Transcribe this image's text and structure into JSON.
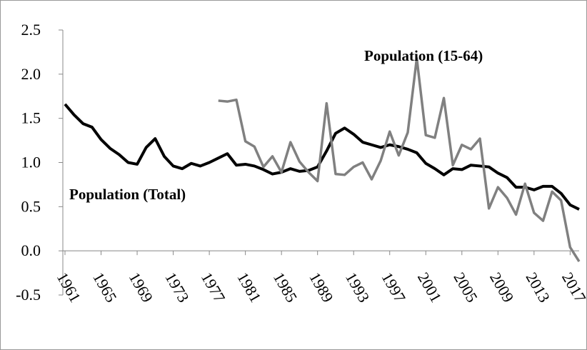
{
  "chart_data": {
    "type": "line",
    "x": [
      1961,
      1962,
      1963,
      1964,
      1965,
      1966,
      1967,
      1968,
      1969,
      1970,
      1971,
      1972,
      1973,
      1974,
      1975,
      1976,
      1977,
      1978,
      1979,
      1980,
      1981,
      1982,
      1983,
      1984,
      1985,
      1986,
      1987,
      1988,
      1989,
      1990,
      1991,
      1992,
      1993,
      1994,
      1995,
      1996,
      1997,
      1998,
      1999,
      2000,
      2001,
      2002,
      2003,
      2004,
      2005,
      2006,
      2007,
      2008,
      2009,
      2010,
      2011,
      2012,
      2013,
      2014,
      2015,
      2016,
      2017,
      2018
    ],
    "xlim": [
      1961,
      2018
    ],
    "xticks": [
      1961,
      1965,
      1969,
      1973,
      1977,
      1981,
      1985,
      1989,
      1993,
      1997,
      2001,
      2005,
      2009,
      2013,
      2017
    ],
    "ylim": [
      -0.5,
      2.5
    ],
    "yticks": [
      {
        "value": -0.5,
        "label": "-0.5"
      },
      {
        "value": 0,
        "label": "0.0"
      },
      {
        "value": 0.5,
        "label": "0.5"
      },
      {
        "value": 1,
        "label": "1.0"
      },
      {
        "value": 1.5,
        "label": "1.5"
      },
      {
        "value": 2,
        "label": "2.0"
      },
      {
        "value": 2.5,
        "label": "2.5"
      }
    ],
    "series": [
      {
        "name": "Population (Total)",
        "color": "#000000",
        "values": [
          1.66,
          1.54,
          1.44,
          1.4,
          1.26,
          1.16,
          1.09,
          1.0,
          0.98,
          1.17,
          1.27,
          1.07,
          0.96,
          0.93,
          0.99,
          0.96,
          1.0,
          1.05,
          1.1,
          0.97,
          0.98,
          0.96,
          0.92,
          0.87,
          0.89,
          0.93,
          0.9,
          0.91,
          0.95,
          1.13,
          1.33,
          1.39,
          1.32,
          1.23,
          1.2,
          1.17,
          1.2,
          1.18,
          1.15,
          1.11,
          0.99,
          0.93,
          0.86,
          0.93,
          0.92,
          0.97,
          0.96,
          0.95,
          0.88,
          0.83,
          0.72,
          0.72,
          0.69,
          0.73,
          0.73,
          0.65,
          0.52,
          0.47
        ]
      },
      {
        "name": "Population (15-64)",
        "color": "#808080",
        "values": [
          null,
          null,
          null,
          null,
          null,
          null,
          null,
          null,
          null,
          null,
          null,
          null,
          null,
          null,
          null,
          null,
          null,
          1.7,
          1.69,
          1.71,
          1.24,
          1.18,
          0.95,
          1.07,
          0.89,
          1.23,
          1.01,
          0.89,
          0.79,
          1.67,
          0.87,
          0.86,
          0.95,
          1.0,
          0.81,
          1.02,
          1.35,
          1.08,
          1.34,
          2.18,
          1.31,
          1.28,
          1.73,
          0.97,
          1.2,
          1.15,
          1.27,
          0.48,
          0.72,
          0.6,
          0.41,
          0.76,
          0.43,
          0.34,
          0.67,
          0.57,
          0.04,
          -0.12
        ]
      }
    ]
  }
}
